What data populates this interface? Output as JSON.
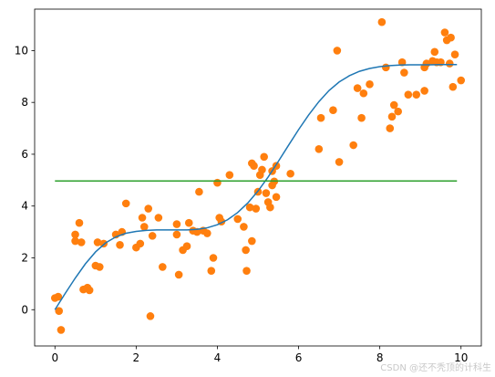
{
  "chart_data": {
    "type": "scatter",
    "title": "",
    "xlabel": "",
    "ylabel": "",
    "xlim": [
      -0.5,
      10.5
    ],
    "ylim": [
      -1.4,
      11.6
    ],
    "xticks": [
      0,
      2,
      4,
      6,
      8,
      10
    ],
    "yticks": [
      0,
      2,
      4,
      6,
      8,
      10
    ],
    "xtick_labels": [
      "0",
      "2",
      "4",
      "6",
      "8",
      "10"
    ],
    "ytick_labels": [
      "0",
      "2",
      "4",
      "6",
      "8",
      "10"
    ],
    "grid": false,
    "legend": "none",
    "series": [
      {
        "kind": "scatter",
        "color": "#ff7f0e",
        "points": [
          [
            0.0,
            0.45
          ],
          [
            0.08,
            0.5
          ],
          [
            0.1,
            -0.05
          ],
          [
            0.15,
            -0.78
          ],
          [
            0.5,
            2.9
          ],
          [
            0.5,
            2.65
          ],
          [
            0.6,
            3.35
          ],
          [
            0.65,
            2.6
          ],
          [
            0.7,
            0.78
          ],
          [
            0.8,
            0.85
          ],
          [
            0.85,
            0.75
          ],
          [
            1.0,
            1.7
          ],
          [
            1.05,
            2.6
          ],
          [
            1.1,
            1.65
          ],
          [
            1.2,
            2.55
          ],
          [
            1.5,
            2.9
          ],
          [
            1.6,
            2.5
          ],
          [
            1.65,
            3.0
          ],
          [
            1.75,
            4.1
          ],
          [
            2.0,
            2.4
          ],
          [
            2.1,
            2.55
          ],
          [
            2.15,
            3.55
          ],
          [
            2.2,
            3.2
          ],
          [
            2.3,
            3.9
          ],
          [
            2.35,
            -0.25
          ],
          [
            2.4,
            2.85
          ],
          [
            2.55,
            3.55
          ],
          [
            2.65,
            1.65
          ],
          [
            3.0,
            3.3
          ],
          [
            3.0,
            2.9
          ],
          [
            3.05,
            1.35
          ],
          [
            3.15,
            2.3
          ],
          [
            3.25,
            2.45
          ],
          [
            3.3,
            3.35
          ],
          [
            3.4,
            3.05
          ],
          [
            3.5,
            3.0
          ],
          [
            3.55,
            4.55
          ],
          [
            3.65,
            3.05
          ],
          [
            3.75,
            2.95
          ],
          [
            3.85,
            1.5
          ],
          [
            3.9,
            2.0
          ],
          [
            4.0,
            4.9
          ],
          [
            4.05,
            3.55
          ],
          [
            4.1,
            3.4
          ],
          [
            4.3,
            5.2
          ],
          [
            4.5,
            3.5
          ],
          [
            4.65,
            3.2
          ],
          [
            4.7,
            2.3
          ],
          [
            4.72,
            1.5
          ],
          [
            4.8,
            3.95
          ],
          [
            4.85,
            2.65
          ],
          [
            4.85,
            5.65
          ],
          [
            4.9,
            5.55
          ],
          [
            4.95,
            3.9
          ],
          [
            5.0,
            4.55
          ],
          [
            5.05,
            5.2
          ],
          [
            5.1,
            5.4
          ],
          [
            5.15,
            5.9
          ],
          [
            5.2,
            4.5
          ],
          [
            5.25,
            4.15
          ],
          [
            5.3,
            3.95
          ],
          [
            5.35,
            4.8
          ],
          [
            5.35,
            5.35
          ],
          [
            5.4,
            4.95
          ],
          [
            5.45,
            5.55
          ],
          [
            5.45,
            4.35
          ],
          [
            5.8,
            5.25
          ],
          [
            6.5,
            6.2
          ],
          [
            6.55,
            7.4
          ],
          [
            6.85,
            7.7
          ],
          [
            6.95,
            10.0
          ],
          [
            7.0,
            5.7
          ],
          [
            7.35,
            6.35
          ],
          [
            7.45,
            8.55
          ],
          [
            7.55,
            7.4
          ],
          [
            7.6,
            8.35
          ],
          [
            7.75,
            8.7
          ],
          [
            8.05,
            11.1
          ],
          [
            8.15,
            9.35
          ],
          [
            8.25,
            7.0
          ],
          [
            8.3,
            7.45
          ],
          [
            8.35,
            7.9
          ],
          [
            8.45,
            7.65
          ],
          [
            8.55,
            9.55
          ],
          [
            8.6,
            9.15
          ],
          [
            8.7,
            8.3
          ],
          [
            8.9,
            8.3
          ],
          [
            9.1,
            9.35
          ],
          [
            9.1,
            8.45
          ],
          [
            9.15,
            9.5
          ],
          [
            9.3,
            9.6
          ],
          [
            9.35,
            9.95
          ],
          [
            9.4,
            9.55
          ],
          [
            9.5,
            9.55
          ],
          [
            9.6,
            10.7
          ],
          [
            9.65,
            10.4
          ],
          [
            9.72,
            9.5
          ],
          [
            9.75,
            10.5
          ],
          [
            9.8,
            8.6
          ],
          [
            9.85,
            9.85
          ],
          [
            10.0,
            8.85
          ]
        ]
      },
      {
        "kind": "line",
        "color": "#1f77b4",
        "x": [
          0,
          0.25,
          0.5,
          0.75,
          1.0,
          1.25,
          1.5,
          1.75,
          2.0,
          2.25,
          2.5,
          2.75,
          3.0,
          3.25,
          3.5,
          3.75,
          4.0,
          4.25,
          4.5,
          4.75,
          5.0,
          5.25,
          5.5,
          5.75,
          6.0,
          6.25,
          6.5,
          6.75,
          7.0,
          7.25,
          7.5,
          7.75,
          8.0,
          8.25,
          8.5,
          8.75,
          9.0,
          9.25,
          9.5,
          9.75,
          9.9
        ],
        "y": [
          0.0,
          0.62,
          1.22,
          1.77,
          2.23,
          2.58,
          2.81,
          2.95,
          3.02,
          3.06,
          3.08,
          3.08,
          3.08,
          3.08,
          3.1,
          3.16,
          3.28,
          3.47,
          3.75,
          4.12,
          4.58,
          5.12,
          5.72,
          6.34,
          6.95,
          7.52,
          8.03,
          8.46,
          8.79,
          9.03,
          9.2,
          9.31,
          9.38,
          9.42,
          9.44,
          9.45,
          9.45,
          9.45,
          9.46,
          9.46,
          9.46
        ]
      },
      {
        "kind": "line",
        "color": "#2ca02c",
        "x": [
          0,
          9.9
        ],
        "y": [
          4.97,
          4.97
        ]
      }
    ]
  },
  "watermark": "CSDN @还不秃顶的计科生"
}
